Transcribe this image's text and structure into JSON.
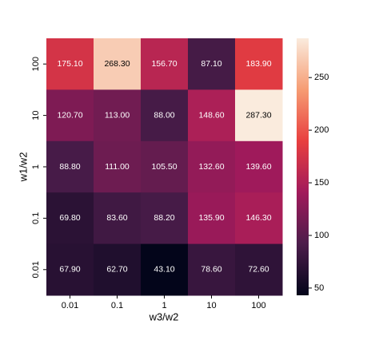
{
  "chart_data": {
    "type": "heatmap",
    "x_label": "w3/w2",
    "y_label": "w1/w2",
    "x_categories": [
      "0.01",
      "0.1",
      "1",
      "10",
      "100"
    ],
    "y_categories": [
      "100",
      "10",
      "1",
      "0.1",
      "0.01"
    ],
    "values": [
      [
        175.1,
        268.3,
        156.7,
        87.1,
        183.9
      ],
      [
        120.7,
        113.0,
        88.0,
        148.6,
        287.3
      ],
      [
        88.8,
        111.0,
        105.5,
        132.6,
        139.6
      ],
      [
        69.8,
        83.6,
        88.2,
        135.9,
        146.3
      ],
      [
        67.9,
        62.7,
        43.1,
        78.6,
        72.6
      ]
    ],
    "value_labels": [
      [
        "175.10",
        "268.30",
        "156.70",
        "87.10",
        "183.90"
      ],
      [
        "120.70",
        "113.00",
        "88.00",
        "148.60",
        "287.30"
      ],
      [
        "88.80",
        "111.00",
        "105.50",
        "132.60",
        "139.60"
      ],
      [
        "69.80",
        "83.60",
        "88.20",
        "135.90",
        "146.30"
      ],
      [
        "67.90",
        "62.70",
        "43.10",
        "78.60",
        "72.60"
      ]
    ],
    "colorbar_lim": [
      43.1,
      287.3
    ],
    "colorbar_ticks": [
      50,
      100,
      150,
      200,
      250
    ],
    "colormap": [
      "#03051a",
      "#4c1d4b",
      "#a11a5b",
      "#e83f3f",
      "#f69c73",
      "#faebdd"
    ]
  }
}
